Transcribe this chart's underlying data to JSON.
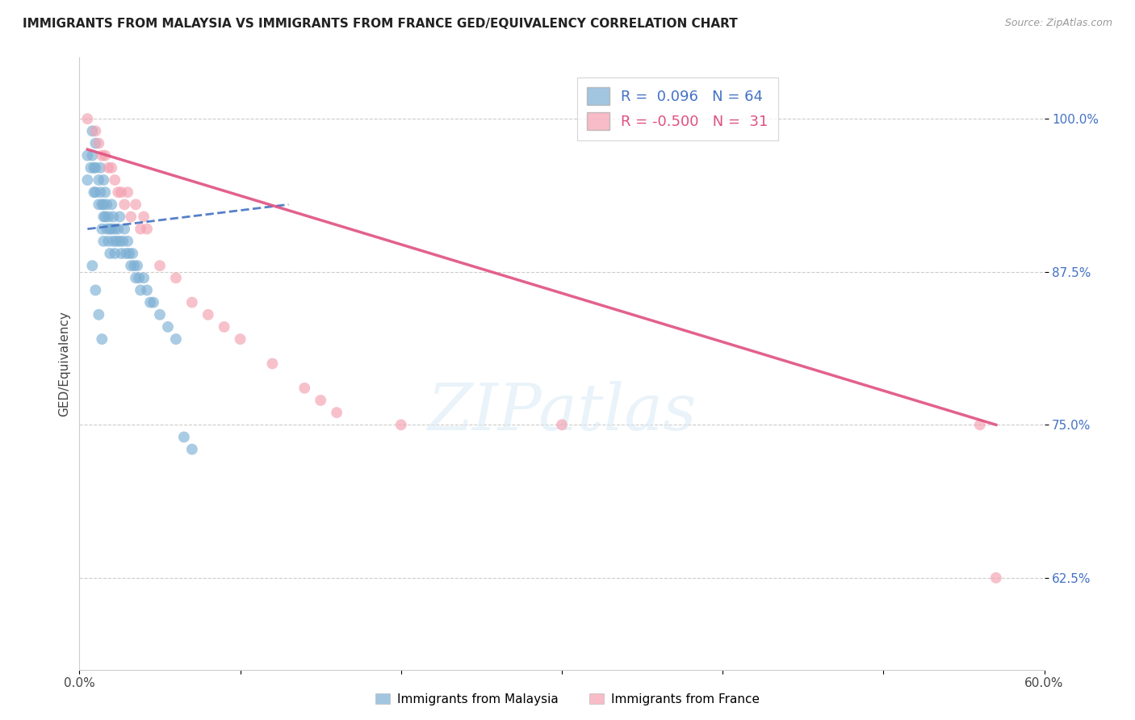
{
  "title": "IMMIGRANTS FROM MALAYSIA VS IMMIGRANTS FROM FRANCE GED/EQUIVALENCY CORRELATION CHART",
  "source": "Source: ZipAtlas.com",
  "ylabel": "GED/Equivalency",
  "yticks": [
    "100.0%",
    "87.5%",
    "75.0%",
    "62.5%"
  ],
  "ytick_vals": [
    1.0,
    0.875,
    0.75,
    0.625
  ],
  "legend1_label": "Immigrants from Malaysia",
  "legend2_label": "Immigrants from France",
  "R_malaysia": 0.096,
  "N_malaysia": 64,
  "R_france": -0.5,
  "N_france": 31,
  "malaysia_color": "#7BAFD4",
  "france_color": "#F4A0B0",
  "malaysia_line_color": "#4472C4",
  "france_line_color": "#E05080",
  "xmin": 0.0,
  "xmax": 0.6,
  "ymin": 0.55,
  "ymax": 1.05,
  "malaysia_x": [
    0.005,
    0.005,
    0.007,
    0.008,
    0.008,
    0.009,
    0.009,
    0.01,
    0.01,
    0.01,
    0.012,
    0.012,
    0.013,
    0.013,
    0.014,
    0.014,
    0.015,
    0.015,
    0.015,
    0.015,
    0.016,
    0.016,
    0.017,
    0.017,
    0.018,
    0.018,
    0.019,
    0.019,
    0.02,
    0.02,
    0.021,
    0.021,
    0.022,
    0.022,
    0.023,
    0.024,
    0.025,
    0.025,
    0.026,
    0.027,
    0.028,
    0.029,
    0.03,
    0.031,
    0.032,
    0.033,
    0.034,
    0.035,
    0.036,
    0.037,
    0.038,
    0.04,
    0.042,
    0.044,
    0.046,
    0.05,
    0.055,
    0.06,
    0.065,
    0.07,
    0.008,
    0.01,
    0.012,
    0.014
  ],
  "malaysia_y": [
    0.97,
    0.95,
    0.96,
    0.99,
    0.97,
    0.96,
    0.94,
    0.98,
    0.96,
    0.94,
    0.95,
    0.93,
    0.96,
    0.94,
    0.93,
    0.91,
    0.95,
    0.93,
    0.92,
    0.9,
    0.94,
    0.92,
    0.93,
    0.91,
    0.92,
    0.9,
    0.91,
    0.89,
    0.93,
    0.91,
    0.92,
    0.9,
    0.91,
    0.89,
    0.9,
    0.91,
    0.92,
    0.9,
    0.89,
    0.9,
    0.91,
    0.89,
    0.9,
    0.89,
    0.88,
    0.89,
    0.88,
    0.87,
    0.88,
    0.87,
    0.86,
    0.87,
    0.86,
    0.85,
    0.85,
    0.84,
    0.83,
    0.82,
    0.74,
    0.73,
    0.88,
    0.86,
    0.84,
    0.82
  ],
  "malaysia_line_x": [
    0.005,
    0.13
  ],
  "malaysia_line_y": [
    0.91,
    0.93
  ],
  "france_x": [
    0.005,
    0.01,
    0.012,
    0.014,
    0.016,
    0.018,
    0.02,
    0.022,
    0.024,
    0.026,
    0.028,
    0.03,
    0.032,
    0.035,
    0.038,
    0.04,
    0.042,
    0.05,
    0.06,
    0.07,
    0.08,
    0.09,
    0.1,
    0.12,
    0.14,
    0.15,
    0.16,
    0.2,
    0.3,
    0.56,
    0.57
  ],
  "france_y": [
    1.0,
    0.99,
    0.98,
    0.97,
    0.97,
    0.96,
    0.96,
    0.95,
    0.94,
    0.94,
    0.93,
    0.94,
    0.92,
    0.93,
    0.91,
    0.92,
    0.91,
    0.88,
    0.87,
    0.85,
    0.84,
    0.83,
    0.82,
    0.8,
    0.78,
    0.77,
    0.76,
    0.75,
    0.75,
    0.75,
    0.625
  ],
  "france_line_x": [
    0.005,
    0.57
  ],
  "france_line_y": [
    0.975,
    0.75
  ]
}
